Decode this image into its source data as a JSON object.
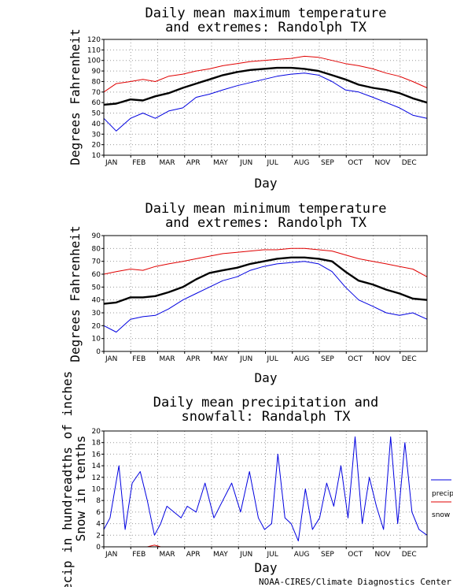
{
  "footer": {
    "credit": "NOAA-CIRES/Climate Diagnostics Center"
  },
  "chart_data": [
    {
      "type": "line",
      "title_lines": [
        "Daily mean maximum temperature",
        "and extremes: Randolph TX"
      ],
      "xlabel": "Day",
      "ylabel": "Degrees Fahrenheit",
      "ylim": [
        10,
        120
      ],
      "yticks": [
        10,
        20,
        30,
        40,
        50,
        60,
        70,
        80,
        90,
        100,
        110,
        120
      ],
      "months": [
        "JAN",
        "FEB",
        "MAR",
        "APR",
        "MAY",
        "JUN",
        "JUL",
        "AUG",
        "SEP",
        "OCT",
        "NOV",
        "DEC"
      ],
      "grid": true,
      "x_days": [
        1,
        15,
        31,
        45,
        59,
        74,
        90,
        105,
        120,
        135,
        151,
        166,
        181,
        196,
        212,
        227,
        243,
        258,
        273,
        288,
        304,
        319,
        334,
        349,
        365
      ],
      "series": [
        {
          "color": "#e00000",
          "values": [
            70,
            78,
            80,
            82,
            80,
            85,
            87,
            90,
            92,
            95,
            97,
            99,
            100,
            101,
            102,
            104,
            103,
            100,
            97,
            95,
            92,
            88,
            85,
            80,
            74
          ]
        },
        {
          "color": "#000000",
          "values": [
            58,
            59,
            63,
            62,
            66,
            69,
            74,
            78,
            82,
            86,
            89,
            91,
            92,
            93,
            93,
            92,
            90,
            86,
            82,
            77,
            74,
            72,
            69,
            64,
            60
          ]
        },
        {
          "color": "#0000e0",
          "values": [
            45,
            33,
            45,
            50,
            45,
            52,
            55,
            65,
            68,
            72,
            76,
            79,
            82,
            85,
            87,
            88,
            86,
            80,
            72,
            70,
            65,
            60,
            55,
            48,
            45
          ]
        }
      ]
    },
    {
      "type": "line",
      "title_lines": [
        "Daily mean minimum temperature",
        "and extremes: Randolph TX"
      ],
      "xlabel": "Day",
      "ylabel": "Degrees Fahrenheit",
      "ylim": [
        0,
        90
      ],
      "yticks": [
        0,
        10,
        20,
        30,
        40,
        50,
        60,
        70,
        80,
        90
      ],
      "months": [
        "JAN",
        "FEB",
        "MAR",
        "APR",
        "MAY",
        "JUN",
        "JUL",
        "AUG",
        "SEP",
        "OCT",
        "NOV",
        "DEC"
      ],
      "grid": true,
      "x_days": [
        1,
        15,
        31,
        45,
        59,
        74,
        90,
        105,
        120,
        135,
        151,
        166,
        181,
        196,
        212,
        227,
        243,
        258,
        273,
        288,
        304,
        319,
        334,
        349,
        365
      ],
      "series": [
        {
          "color": "#e00000",
          "values": [
            60,
            62,
            64,
            63,
            66,
            68,
            70,
            72,
            74,
            76,
            77,
            78,
            79,
            79,
            80,
            80,
            79,
            78,
            75,
            72,
            70,
            68,
            66,
            64,
            58
          ]
        },
        {
          "color": "#000000",
          "values": [
            37,
            38,
            42,
            42,
            43,
            46,
            50,
            56,
            61,
            63,
            65,
            68,
            70,
            72,
            73,
            73,
            72,
            70,
            62,
            55,
            52,
            48,
            45,
            41,
            40
          ]
        },
        {
          "color": "#0000e0",
          "values": [
            20,
            15,
            25,
            27,
            28,
            33,
            40,
            45,
            50,
            55,
            58,
            63,
            66,
            68,
            69,
            70,
            68,
            62,
            50,
            40,
            35,
            30,
            28,
            30,
            25
          ]
        }
      ]
    },
    {
      "type": "line",
      "title_lines": [
        "Daily mean precipitation and",
        "snowfall: Randalph TX"
      ],
      "xlabel": "Day",
      "ylabel_lines": [
        "Precip in hundreadths of inches",
        "Snow in tenths"
      ],
      "ylim": [
        0,
        20
      ],
      "yticks": [
        0,
        2,
        4,
        6,
        8,
        10,
        12,
        14,
        16,
        18,
        20
      ],
      "months": [
        "JAN",
        "FEB",
        "MAR",
        "APR",
        "MAY",
        "JUN",
        "JUL",
        "AUG",
        "SEP",
        "OCT",
        "NOV",
        "DEC"
      ],
      "grid": true,
      "legend": [
        "precip",
        "snow"
      ],
      "legend_position": "right",
      "x_days": [
        1,
        8,
        18,
        25,
        33,
        42,
        50,
        58,
        65,
        72,
        80,
        88,
        95,
        105,
        115,
        125,
        135,
        145,
        155,
        165,
        175,
        182,
        190,
        197,
        205,
        212,
        220,
        228,
        236,
        244,
        252,
        260,
        268,
        276,
        284,
        292,
        300,
        308,
        316,
        324,
        332,
        340,
        348,
        356,
        365
      ],
      "series": [
        {
          "name": "precip",
          "color": "#0000e0",
          "values": [
            3,
            5,
            14,
            3,
            11,
            13,
            8,
            2,
            4,
            7,
            6,
            5,
            7,
            6,
            11,
            5,
            8,
            11,
            6,
            13,
            5,
            3,
            4,
            16,
            5,
            4,
            1,
            10,
            3,
            5,
            11,
            7,
            14,
            5,
            19,
            4,
            12,
            7,
            3,
            19,
            4,
            18,
            6,
            3,
            2
          ]
        },
        {
          "name": "snow",
          "color": "#e00000",
          "values": [
            0,
            0,
            0,
            0,
            0,
            0,
            0,
            0.3,
            0,
            0,
            0,
            0,
            0,
            0,
            0,
            0,
            0,
            0,
            0,
            0,
            0,
            0,
            0,
            0,
            0,
            0,
            0,
            0,
            0,
            0,
            0,
            0,
            0,
            0,
            0,
            0,
            0,
            0,
            0,
            0,
            0,
            0,
            0,
            0,
            0
          ]
        }
      ]
    }
  ]
}
